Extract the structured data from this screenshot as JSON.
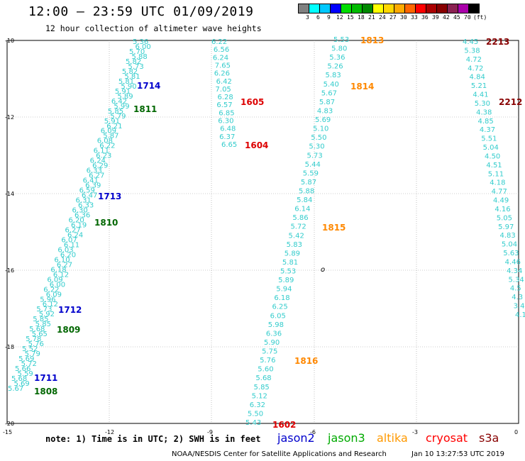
{
  "header": {
    "title": "12:00 — 23:59 UTC 01/09/2019",
    "subtitle": "12 hour collection of altimeter wave heights"
  },
  "color_scale": {
    "colors": [
      "#808080",
      "#00ffff",
      "#00c8ff",
      "#0000ff",
      "#00dd00",
      "#00bb00",
      "#008800",
      "#ffff00",
      "#ffd700",
      "#ffaa00",
      "#ff6600",
      "#ff0000",
      "#aa0000",
      "#880000",
      "#8b2252",
      "#aa00aa",
      "#000000"
    ],
    "labels": [
      "3",
      "6",
      "9",
      "12",
      "15",
      "18",
      "21",
      "24",
      "27",
      "30",
      "33",
      "36",
      "39",
      "42",
      "45",
      "70",
      "(ft)"
    ]
  },
  "map": {
    "lat_labels": [
      "-10",
      "-12",
      "-14",
      "-16",
      "-18",
      "-20"
    ],
    "lon_labels": [
      "-15",
      "-12",
      "-9",
      "-6",
      "-3",
      "0"
    ],
    "grid_color": "#999999"
  },
  "track_colors": {
    "jason2": "#0000cc",
    "jason3": "#006600",
    "altika": "#ff8800",
    "cryosat": "#dd0000",
    "s3a": "#880000",
    "swh": "#33cccc"
  },
  "tracks": [
    {
      "id": "a",
      "values": [
        "5.36",
        "6.00",
        "5.70",
        "5.88",
        "5.82",
        "5.73",
        "5.82",
        "5.81",
        "5.81",
        "5.90",
        "5.91",
        "5.89",
        "6.42",
        "5.99",
        "5.85",
        "5.79",
        "5.91",
        "6.21",
        "6.09",
        "5.87",
        "6.08",
        "6.22",
        "6.11",
        "6.23",
        "6.24",
        "6.29",
        "6.33",
        "6.27",
        "6.41",
        "6.39",
        "6.59",
        "6.47",
        "6.31",
        "6.33",
        "6.30",
        "6.36",
        "6.20",
        "6.19",
        "6.27",
        "6.24",
        "6.07",
        "6.11",
        "6.03",
        "6.20",
        "6.10",
        "6.27",
        "6.18",
        "6.12",
        "6.09",
        "6.00",
        "6.22",
        "6.09",
        "5.96",
        "6.12",
        "5.73",
        "5.92",
        "5.85",
        "5.85",
        "5.68",
        "5.65",
        "5.78",
        "5.76",
        "5.52",
        "5.79",
        "5.69",
        "5.72",
        "5.66",
        "5.59",
        "5.68",
        "5.69",
        "5.67"
      ]
    },
    {
      "id": "b",
      "values": [
        "6.22",
        "6.56",
        "6.24",
        "7.65",
        "6.26",
        "6.42",
        "7.05",
        "6.28",
        "6.57",
        "6.85",
        "6.30",
        "6.48",
        "6.37",
        "6.65"
      ]
    },
    {
      "id": "c",
      "values": [
        "5.53",
        "5.80",
        "5.36",
        "5.26",
        "5.83",
        "5.40",
        "5.67",
        "5.87",
        "4.83",
        "5.69",
        "5.10",
        "5.50",
        "5.30",
        "5.73",
        "5.44",
        "5.59",
        "5.87",
        "5.88",
        "5.84",
        "6.14",
        "5.86",
        "5.72",
        "5.42",
        "5.83",
        "5.89",
        "5.81",
        "5.53",
        "5.89",
        "5.94",
        "6.18",
        "6.25",
        "6.05",
        "5.98",
        "6.36",
        "5.90",
        "5.75",
        "5.76",
        "5.60",
        "5.68",
        "5.85",
        "5.12",
        "6.32",
        "5.50",
        "5.43"
      ]
    },
    {
      "id": "d",
      "values": [
        "4.45",
        "5.38",
        "4.72",
        "4.72",
        "4.84",
        "5.21",
        "4.41",
        "5.30",
        "4.38",
        "4.85",
        "4.37",
        "5.51",
        "5.04",
        "4.50",
        "4.51",
        "5.11",
        "4.18",
        "4.77",
        "4.49",
        "4.16",
        "5.05",
        "5.97",
        "4.83",
        "5.04",
        "5.63",
        "4.46",
        "4.34",
        "5.34",
        "4.5",
        "4.3",
        "3.4",
        "4.1"
      ]
    }
  ],
  "labels": [
    {
      "name": "label-1714",
      "text": "1714",
      "sat": "jason2"
    },
    {
      "name": "label-1811",
      "text": "1811",
      "sat": "jason3"
    },
    {
      "name": "label-1713",
      "text": "1713",
      "sat": "jason2"
    },
    {
      "name": "label-1810",
      "text": "1810",
      "sat": "jason3"
    },
    {
      "name": "label-1712",
      "text": "1712",
      "sat": "jason2"
    },
    {
      "name": "label-1809",
      "text": "1809",
      "sat": "jason3"
    },
    {
      "name": "label-1711",
      "text": "1711",
      "sat": "jason2"
    },
    {
      "name": "label-1808",
      "text": "1808",
      "sat": "jason3"
    },
    {
      "name": "label-1605",
      "text": "1605",
      "sat": "cryosat"
    },
    {
      "name": "label-1604",
      "text": "1604",
      "sat": "cryosat"
    },
    {
      "name": "label-1602",
      "text": "1602",
      "sat": "cryosat"
    },
    {
      "name": "label-1813",
      "text": "1813",
      "sat": "altika"
    },
    {
      "name": "label-1814",
      "text": "1814",
      "sat": "altika"
    },
    {
      "name": "label-1815",
      "text": "1815",
      "sat": "altika"
    },
    {
      "name": "label-1816",
      "text": "1816",
      "sat": "altika"
    },
    {
      "name": "label-2213",
      "text": "2213",
      "sat": "s3a"
    },
    {
      "name": "label-2212",
      "text": "2212",
      "sat": "s3a"
    }
  ],
  "island_marker": "o",
  "note": "note: 1) Time is in UTC; 2) SWH is in feet",
  "legend": [
    {
      "name": "legend-jason2",
      "text": "jason2",
      "color": "#0000cc"
    },
    {
      "name": "legend-jason3",
      "text": "jason3",
      "color": "#00aa00"
    },
    {
      "name": "legend-altika",
      "text": "altika",
      "color": "#ff9900"
    },
    {
      "name": "legend-cryosat",
      "text": "cryosat",
      "color": "#ff0000"
    },
    {
      "name": "legend-s3a",
      "text": "s3a",
      "color": "#880000"
    }
  ],
  "footer": {
    "credit": "NOAA/NESDIS Center for Satellite Applications and Research",
    "timestamp": "Jan 10 13:27:53 UTC 2019"
  }
}
